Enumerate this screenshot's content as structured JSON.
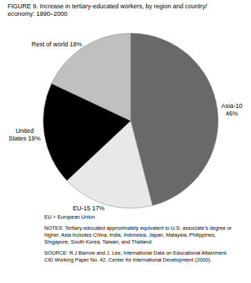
{
  "chart_data": {
    "type": "pie",
    "title": "FIGURE 9. Increase in tertiary-educated workers, by region and country/\neconomy: 1990–2000",
    "categories": [
      "Asia-10\n46%",
      "EU-15 17%",
      "United\nStates 19%",
      "Rest of world 18%"
    ],
    "values": [
      46,
      17,
      19,
      18
    ],
    "colors": [
      "#696969",
      "#e8e8e8",
      "#000000",
      "#c0c0c0"
    ],
    "annotations": [
      "EU = European Union",
      "NOTES: Tertiary-educated approximately equivalent to U.S. associate’s degree or\nhigher. Asia includes China, India, Indonesia, Japan, Malaysia, Philippines,\nSingapore, South Korea, Taiwan, and Thailand.",
      "SOURCE: R.J Barrow and J. Lee, International Data on Educational Attainment.\nCID Working Paper No. 42. Center for International Development (2000)."
    ]
  }
}
